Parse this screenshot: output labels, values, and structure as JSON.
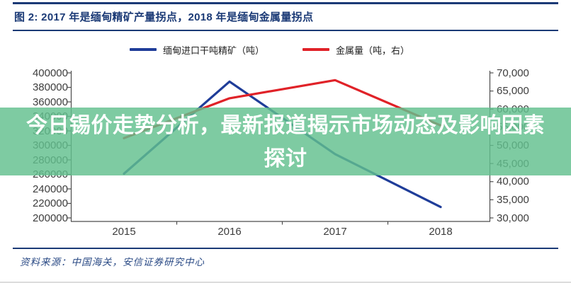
{
  "header": {
    "figure_title": "图 2: 2017 年是缅甸精矿产量拐点，2018 年是缅甸金属量拐点"
  },
  "overlay": {
    "line1": "今日锡价走势分析，最新报道揭示市场动态及影响因素",
    "line2": "探讨"
  },
  "footer": {
    "source": "资料来源：中国海关，安信证券研究中心"
  },
  "colors": {
    "accent_navy": "#1b3a76",
    "series_blue": "#1f3d99",
    "series_red": "#e02228",
    "overlay_green": "rgba(97,191,141,0.82)",
    "axis_line": "#4d4d4d",
    "axis_text": "#3d3d3d"
  },
  "chart_data": {
    "type": "line",
    "title": "图 2: 2017 年是缅甸精矿产量拐点，2018 年是缅甸金属量拐点",
    "categories": [
      "2015",
      "2016",
      "2017",
      "2018"
    ],
    "series": [
      {
        "name": "缅甸进口干吨精矿（吨）",
        "axis": "left",
        "color": "#1f3d99",
        "values": [
          261000,
          388000,
          288000,
          215000
        ]
      },
      {
        "name": "金属量（吨，右）",
        "axis": "right",
        "color": "#e02228",
        "values": [
          52000,
          63000,
          68000,
          55500
        ]
      }
    ],
    "left_axis": {
      "min": 200000,
      "max": 400000,
      "step": 20000,
      "labels": [
        "400000",
        "380000",
        "360000",
        "340000",
        "320000",
        "300000",
        "280000",
        "260000",
        "240000",
        "220000",
        "200000"
      ]
    },
    "right_axis": {
      "min": 30000,
      "max": 70000,
      "step": 5000,
      "labels": [
        "70,000",
        "65,000",
        "60,000",
        "55,000",
        "50,000",
        "45,000",
        "40,000",
        "35,000",
        "30,000"
      ]
    },
    "grid": false,
    "legend_position": "top"
  }
}
